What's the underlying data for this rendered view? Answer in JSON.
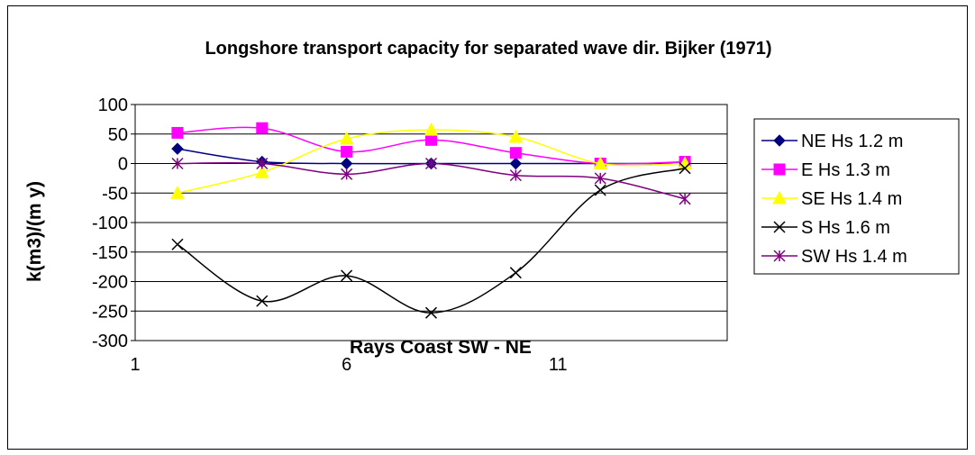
{
  "chart_data": {
    "type": "line",
    "title": "Longshore transport capacity for separated wave dir. Bijker (1971)",
    "xlabel": "Rays Coast SW - NE",
    "ylabel": "k(m3)/(m y)",
    "xlim": [
      1,
      15
    ],
    "ylim": [
      -300,
      100
    ],
    "x_ticks": [
      "1",
      "6",
      "11"
    ],
    "y_ticks": [
      "100",
      "50",
      "0",
      "-50",
      "-100",
      "-150",
      "-200",
      "-250",
      "-300"
    ],
    "grid": "horizontal",
    "legend_position": "right",
    "x": [
      2,
      4,
      6,
      8,
      10,
      12,
      14
    ],
    "series": [
      {
        "name": "NE Hs 1.2 m",
        "values": [
          25,
          3,
          0,
          0,
          0,
          0,
          0
        ],
        "color": "#000080",
        "marker": "diamond"
      },
      {
        "name": "E Hs 1.3 m",
        "values": [
          52,
          60,
          20,
          40,
          18,
          0,
          3
        ],
        "color": "#FF00FF",
        "marker": "square"
      },
      {
        "name": "SE Hs 1.4 m",
        "values": [
          -50,
          -15,
          42,
          57,
          45,
          0,
          0
        ],
        "color": "#FFFF00",
        "marker": "triangle"
      },
      {
        "name": "S Hs 1.6 m",
        "values": [
          -137,
          -233,
          -190,
          -253,
          -185,
          -45,
          -8
        ],
        "color": "#000000",
        "marker": "x"
      },
      {
        "name": "SW Hs 1.4 m",
        "values": [
          0,
          0,
          -18,
          0,
          -20,
          -25,
          -60
        ],
        "color": "#800080",
        "marker": "star"
      }
    ]
  }
}
